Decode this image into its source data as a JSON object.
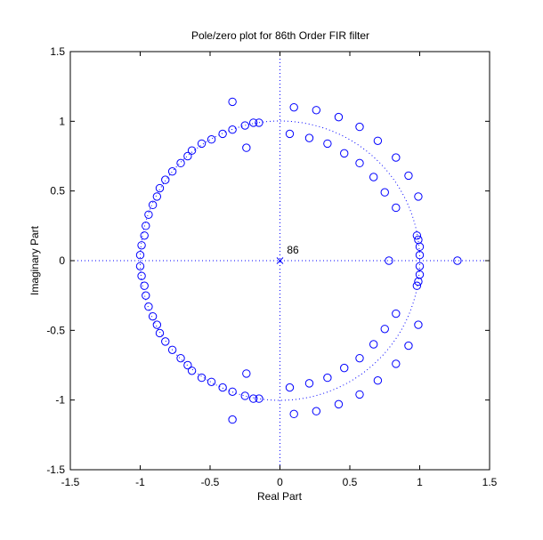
{
  "chart_data": {
    "type": "scatter",
    "title": "Pole/zero plot for 86th Order FIR filter",
    "xlabel": "Real Part",
    "ylabel": "Imaginary Part",
    "xlim": [
      -1.5,
      1.5
    ],
    "ylim": [
      -1.5,
      1.5
    ],
    "xticks": [
      -1.5,
      -1,
      -0.5,
      0,
      0.5,
      1,
      1.5
    ],
    "yticks": [
      -1.5,
      -1,
      -0.5,
      0,
      0.5,
      1,
      1.5
    ],
    "xtick_labels": [
      "-1.5",
      "-1",
      "-0.5",
      "0",
      "0.5",
      "1",
      "1.5"
    ],
    "ytick_labels": [
      "-1.5",
      "-1",
      "-0.5",
      "0",
      "0.5",
      "1",
      "1.5"
    ],
    "grid": false,
    "unit_circle": true,
    "marker_color": "#0000ff",
    "annotation": {
      "label": "86",
      "x": 0.05,
      "y": 0.05
    },
    "poles": [
      [
        0,
        0
      ]
    ],
    "zeros": [
      [
        -0.34,
        1.14
      ],
      [
        -0.25,
        0.97
      ],
      [
        -0.19,
        0.99
      ],
      [
        -0.15,
        0.99
      ],
      [
        -0.24,
        0.81
      ],
      [
        -0.34,
        0.94
      ],
      [
        -0.41,
        0.91
      ],
      [
        -0.49,
        0.87
      ],
      [
        -0.56,
        0.84
      ],
      [
        -0.63,
        0.79
      ],
      [
        -0.66,
        0.75
      ],
      [
        -0.71,
        0.7
      ],
      [
        -0.77,
        0.64
      ],
      [
        -0.82,
        0.58
      ],
      [
        -0.86,
        0.52
      ],
      [
        -0.88,
        0.46
      ],
      [
        -0.91,
        0.4
      ],
      [
        -0.94,
        0.33
      ],
      [
        -0.96,
        0.25
      ],
      [
        -0.97,
        0.18
      ],
      [
        -0.99,
        0.11
      ],
      [
        -1.0,
        0.04
      ],
      [
        -1.0,
        -0.04
      ],
      [
        -0.99,
        -0.11
      ],
      [
        -0.97,
        -0.18
      ],
      [
        -0.96,
        -0.25
      ],
      [
        -0.94,
        -0.33
      ],
      [
        -0.91,
        -0.4
      ],
      [
        -0.88,
        -0.46
      ],
      [
        -0.86,
        -0.52
      ],
      [
        -0.82,
        -0.58
      ],
      [
        -0.77,
        -0.64
      ],
      [
        -0.71,
        -0.7
      ],
      [
        -0.66,
        -0.75
      ],
      [
        -0.63,
        -0.79
      ],
      [
        -0.56,
        -0.84
      ],
      [
        -0.49,
        -0.87
      ],
      [
        -0.41,
        -0.91
      ],
      [
        -0.34,
        -0.94
      ],
      [
        -0.25,
        -0.97
      ],
      [
        -0.19,
        -0.99
      ],
      [
        -0.15,
        -0.99
      ],
      [
        -0.24,
        -0.81
      ],
      [
        -0.34,
        -1.14
      ],
      [
        0.1,
        1.1
      ],
      [
        0.26,
        1.08
      ],
      [
        0.42,
        1.03
      ],
      [
        0.57,
        0.96
      ],
      [
        0.7,
        0.86
      ],
      [
        0.83,
        0.74
      ],
      [
        0.92,
        0.61
      ],
      [
        0.99,
        0.46
      ],
      [
        0.07,
        0.91
      ],
      [
        0.21,
        0.88
      ],
      [
        0.34,
        0.84
      ],
      [
        0.46,
        0.77
      ],
      [
        0.57,
        0.7
      ],
      [
        0.67,
        0.6
      ],
      [
        0.75,
        0.49
      ],
      [
        0.83,
        0.38
      ],
      [
        0.98,
        0.18
      ],
      [
        0.99,
        0.15
      ],
      [
        1.0,
        0.1
      ],
      [
        1.0,
        0.04
      ],
      [
        0.78,
        0.0
      ],
      [
        1.27,
        0.0
      ],
      [
        1.0,
        -0.04
      ],
      [
        1.0,
        -0.1
      ],
      [
        0.99,
        -0.15
      ],
      [
        0.98,
        -0.18
      ],
      [
        0.83,
        -0.38
      ],
      [
        0.75,
        -0.49
      ],
      [
        0.67,
        -0.6
      ],
      [
        0.57,
        -0.7
      ],
      [
        0.46,
        -0.77
      ],
      [
        0.34,
        -0.84
      ],
      [
        0.21,
        -0.88
      ],
      [
        0.07,
        -0.91
      ],
      [
        0.99,
        -0.46
      ],
      [
        0.92,
        -0.61
      ],
      [
        0.83,
        -0.74
      ],
      [
        0.7,
        -0.86
      ],
      [
        0.57,
        -0.96
      ],
      [
        0.42,
        -1.03
      ],
      [
        0.26,
        -1.08
      ],
      [
        0.1,
        -1.1
      ]
    ]
  }
}
